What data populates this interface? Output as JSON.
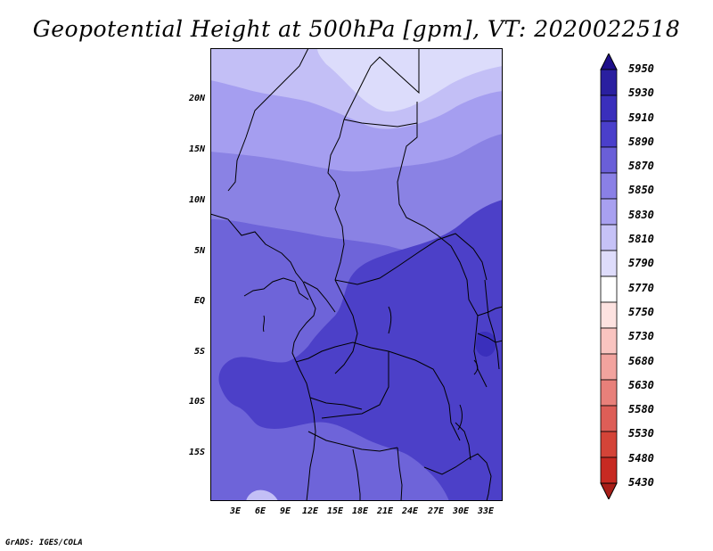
{
  "title": "Geopotential Height at 500hPa [gpm], VT: 2020022518",
  "credit": "GrADS: IGES/COLA",
  "lat_ticks": [
    "20N",
    "15N",
    "10N",
    "5N",
    "EQ",
    "5S",
    "10S",
    "15S"
  ],
  "lon_ticks": [
    "3E",
    "6E",
    "9E",
    "12E",
    "15E",
    "18E",
    "21E",
    "24E",
    "27E",
    "30E",
    "33E"
  ],
  "colorbar": {
    "levels": [
      "5950",
      "5930",
      "5910",
      "5890",
      "5870",
      "5850",
      "5830",
      "5810",
      "5790",
      "5770",
      "5750",
      "5730",
      "5680",
      "5630",
      "5580",
      "5530",
      "5480",
      "5430"
    ],
    "colors": [
      "#1e0f8a",
      "#2a1fa0",
      "#3a2fbc",
      "#4a3fcb",
      "#6a5fd8",
      "#8a80e6",
      "#a8a0f0",
      "#c6c2f7",
      "#dedcfb",
      "#ffffff",
      "#fde2e0",
      "#f9c4c0",
      "#f2a39e",
      "#e8807a",
      "#dd5e57",
      "#d44438",
      "#c72a22",
      "#a81e18"
    ]
  },
  "map_colors": {
    "c5790": "#dcdcfb",
    "c5810": "#c3bff6",
    "c5830": "#a59ef0",
    "c5850": "#8a82e4",
    "c5870": "#6e64d9",
    "c5890": "#4c40c8",
    "c5910": "#3a2fbc"
  }
}
